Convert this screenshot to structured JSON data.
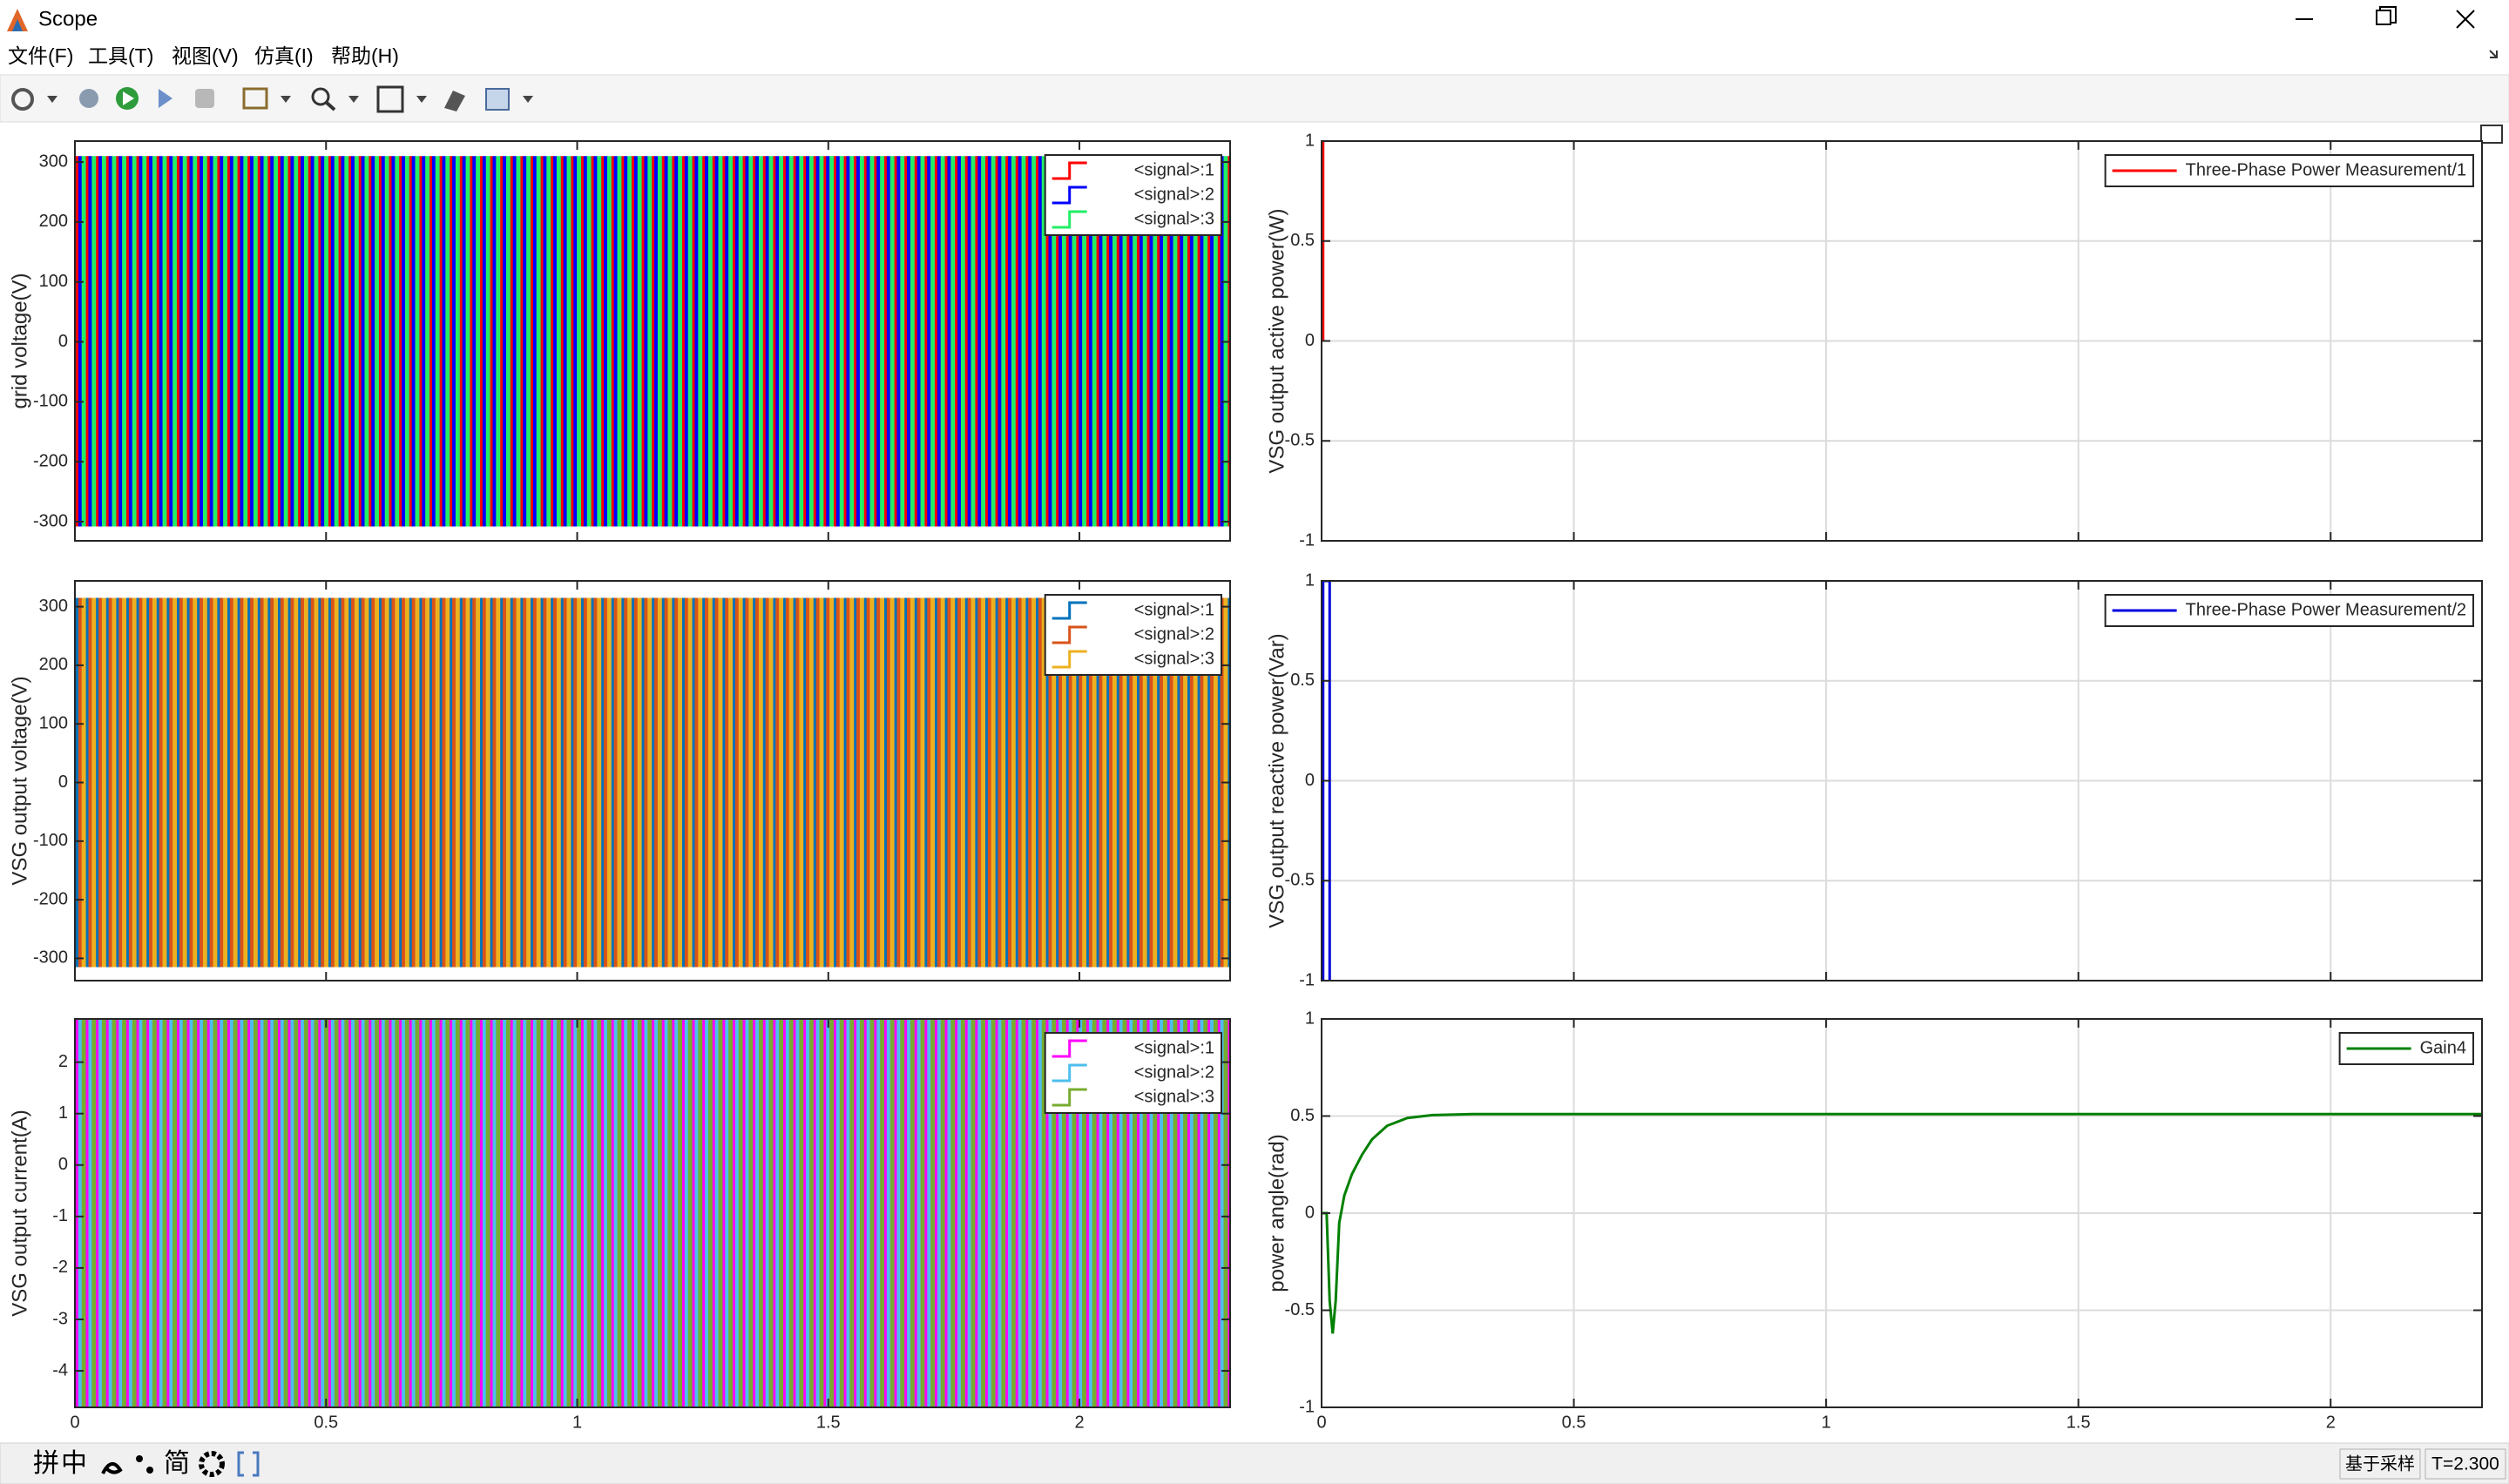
{
  "window": {
    "title": "Scope",
    "menu": [
      "文件(F)",
      "工具(T)",
      "视图(V)",
      "仿真(I)",
      "帮助(H)"
    ],
    "ime": [
      "拼",
      "中",
      "简"
    ],
    "status": [
      "基于采样",
      "T=2.300"
    ]
  },
  "chart_data": [
    {
      "type": "envelope",
      "ylabel": "grid voltage(V)",
      "xlim": [
        0,
        2.3
      ],
      "ylim": [
        -332,
        335
      ],
      "xticks": [
        0,
        0.5,
        1,
        1.5,
        2
      ],
      "yticks": [
        -300,
        -200,
        -100,
        0,
        100,
        200,
        300
      ],
      "xtick_labels": false,
      "grid": false,
      "legend": "northeast",
      "series": [
        {
          "name": "<signal>:1",
          "color": "#ff0000",
          "x": [
            0,
            2.3
          ],
          "values": [
            310,
            310
          ],
          "lower": [
            -308,
            -308
          ]
        },
        {
          "name": "<signal>:2",
          "color": "#0000ff",
          "x": [
            0,
            2.3
          ],
          "values": [
            310,
            310
          ],
          "lower": [
            -308,
            -308
          ]
        },
        {
          "name": "<signal>:3",
          "color": "#22ee66",
          "x": [
            0,
            2.3
          ],
          "values": [
            310,
            310
          ],
          "lower": [
            -308,
            -308
          ]
        }
      ]
    },
    {
      "type": "envelope",
      "ylabel": "VSG output voltage(V)",
      "xlim": [
        0,
        2.3
      ],
      "ylim": [
        -338,
        344
      ],
      "xticks": [
        0,
        0.5,
        1,
        1.5,
        2
      ],
      "yticks": [
        -300,
        -200,
        -100,
        0,
        100,
        200,
        300
      ],
      "xtick_labels": false,
      "grid": false,
      "legend": "northeast",
      "series": [
        {
          "name": "<signal>:1",
          "color": "#0072bd",
          "x": [
            0,
            2.3
          ],
          "values": [
            315,
            315
          ],
          "lower": [
            -315,
            -315
          ]
        },
        {
          "name": "<signal>:2",
          "color": "#d95319",
          "x": [
            0,
            2.3
          ],
          "values": [
            315,
            315
          ],
          "lower": [
            -315,
            -315
          ]
        },
        {
          "name": "<signal>:3",
          "color": "#edb120",
          "x": [
            0,
            2.3
          ],
          "values": [
            315,
            315
          ],
          "lower": [
            -315,
            -315
          ]
        }
      ]
    },
    {
      "type": "envelope",
      "ylabel": "VSG output current(A)",
      "xlim": [
        0,
        2.3
      ],
      "ylim": [
        -4.71,
        2.84
      ],
      "xticks": [
        0,
        0.5,
        1,
        1.5,
        2
      ],
      "yticks": [
        -4,
        -3,
        -2,
        -1,
        0,
        1,
        2
      ],
      "xtick_labels": true,
      "grid": false,
      "legend": "northeast",
      "series": [
        {
          "name": "<signal>:1",
          "color": "#ff00ff",
          "x": [
            0,
            2.3
          ],
          "values": [
            2.84,
            2.84
          ],
          "lower": [
            -4.71,
            -4.71
          ]
        },
        {
          "name": "<signal>:2",
          "color": "#4dbeee",
          "x": [
            0,
            2.3
          ],
          "values": [
            2.84,
            2.84
          ],
          "lower": [
            -4.71,
            -4.71
          ]
        },
        {
          "name": "<signal>:3",
          "color": "#77ac30",
          "x": [
            0,
            2.3
          ],
          "values": [
            2.84,
            2.84
          ],
          "lower": [
            -4.71,
            -4.71
          ]
        }
      ]
    },
    {
      "type": "line",
      "ylabel": "VSG output active power(W)",
      "xlim": [
        0,
        2.3
      ],
      "ylim": [
        -1,
        1
      ],
      "xticks": [
        0,
        0.5,
        1,
        1.5,
        2
      ],
      "yticks": [
        -1,
        -0.5,
        0,
        0.5,
        1
      ],
      "xtick_labels": false,
      "grid": true,
      "legend": "northeast",
      "series": [
        {
          "name": "Three-Phase Power Measurement/1",
          "color": "#ff0000",
          "x": [
            0.003,
            0.003
          ],
          "values": [
            0,
            1
          ]
        }
      ]
    },
    {
      "type": "line",
      "ylabel": "VSG output reactive power(Var)",
      "xlim": [
        0,
        2.3
      ],
      "ylim": [
        -1,
        1
      ],
      "xticks": [
        0,
        0.5,
        1,
        1.5,
        2
      ],
      "yticks": [
        -1,
        -0.5,
        0,
        0.5,
        1
      ],
      "xtick_labels": false,
      "grid": true,
      "legend": "northeast",
      "series": [
        {
          "name": "Three-Phase Power Measurement/2",
          "color": "#0000e0",
          "x": [
            0.003,
            0.003,
            0.016,
            0.016
          ],
          "values": [
            -1,
            1,
            1,
            -1
          ]
        }
      ]
    },
    {
      "type": "line",
      "ylabel": "power angle(rad)",
      "xlim": [
        0,
        2.3
      ],
      "ylim": [
        -1,
        1
      ],
      "xticks": [
        0,
        0.5,
        1,
        1.5,
        2
      ],
      "yticks": [
        -1,
        -0.5,
        0,
        0.5,
        1
      ],
      "xtick_labels": true,
      "grid": true,
      "legend": "northeast",
      "series": [
        {
          "name": "Gain4",
          "color": "#008000",
          "x": [
            0,
            0.01,
            0.016,
            0.022,
            0.028,
            0.035,
            0.045,
            0.06,
            0.08,
            0.1,
            0.13,
            0.17,
            0.22,
            0.3,
            2.3
          ],
          "values": [
            0,
            0,
            -0.45,
            -0.62,
            -0.45,
            -0.05,
            0.09,
            0.2,
            0.3,
            0.38,
            0.45,
            0.49,
            0.505,
            0.51,
            0.51
          ]
        }
      ]
    }
  ]
}
